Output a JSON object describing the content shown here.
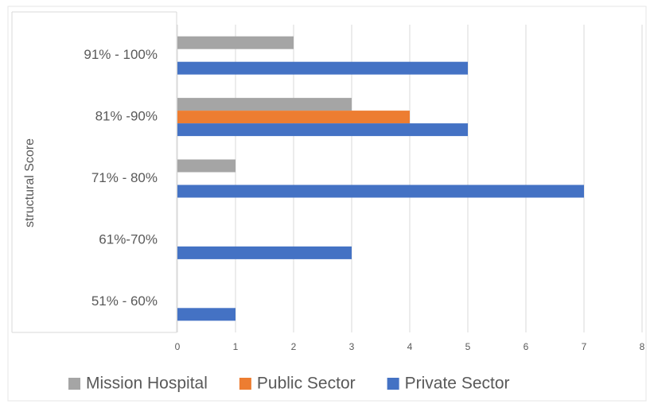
{
  "chart_data": {
    "type": "bar",
    "orientation": "horizontal",
    "y_axis_label": "structural Score",
    "categories": [
      "91% - 100%",
      "81% -90%",
      "71% - 80%",
      "61%-70%",
      "51% - 60%"
    ],
    "series": [
      {
        "name": "Mission Hospital",
        "color": "#a5a5a5",
        "values": [
          2,
          3,
          1,
          null,
          null
        ]
      },
      {
        "name": "Public Sector",
        "color": "#ed7d31",
        "values": [
          null,
          4,
          null,
          null,
          null
        ]
      },
      {
        "name": "Private Sector",
        "color": "#4472c4",
        "values": [
          5,
          5,
          7,
          3,
          1
        ]
      }
    ],
    "xlim": [
      0,
      8
    ],
    "xticks": [
      0,
      1,
      2,
      3,
      4,
      5,
      6,
      7,
      8
    ],
    "grid": true,
    "legend": "bottom"
  }
}
